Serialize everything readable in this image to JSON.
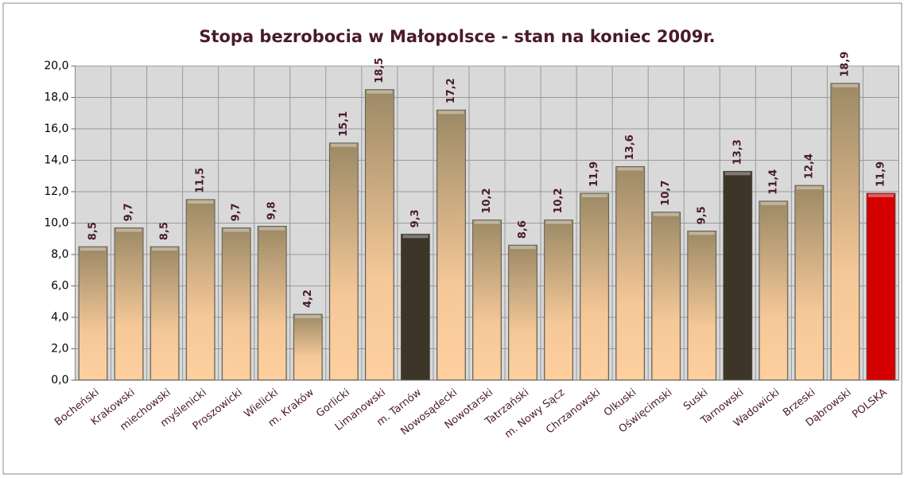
{
  "chart_data": {
    "type": "bar",
    "title": "Stopa bezrobocia w Małopolsce - stan na koniec 2009r.",
    "categories": [
      "Bocheński",
      "Krakowski",
      "miechowski",
      "myślenicki",
      "Proszowicki",
      "Wielicki",
      "m. Kraków",
      "Gorlicki",
      "Limanowski",
      "m. Tarnów",
      "Nowosądecki",
      "Nowotarski",
      "Tatrzański",
      "m. Nowy Sącz",
      "Chrzanowski",
      "Olkuski",
      "Oświęcimski",
      "Suski",
      "Tarnowski",
      "Wadowicki",
      "Brzeski",
      "Dąbrowski",
      "POLSKA"
    ],
    "values": [
      8.5,
      9.7,
      8.5,
      11.5,
      9.7,
      9.8,
      4.2,
      15.1,
      18.5,
      9.3,
      17.2,
      10.2,
      8.6,
      10.2,
      11.9,
      13.6,
      10.7,
      9.5,
      13.3,
      11.4,
      12.4,
      18.9,
      11.9
    ],
    "value_labels": [
      "8,5",
      "9,7",
      "8,5",
      "11,5",
      "9,7",
      "9,8",
      "4,2",
      "15,1",
      "18,5",
      "9,3",
      "17,2",
      "10,2",
      "8,6",
      "10,2",
      "11,9",
      "13,6",
      "10,7",
      "9,5",
      "13,3",
      "11,4",
      "12,4",
      "18,9",
      "11,9"
    ],
    "color": "#9c8a66",
    "colors": [
      "#9c8a66",
      "#9c8a66",
      "#9c8a66",
      "#9c8a66",
      "#9c8a66",
      "#9c8a66",
      "#9c8a66",
      "#9c8a66",
      "#9c8a66",
      "#3d3628",
      "#9c8a66",
      "#9c8a66",
      "#9c8a66",
      "#9c8a66",
      "#9c8a66",
      "#9c8a66",
      "#9c8a66",
      "#9c8a66",
      "#3d3628",
      "#9c8a66",
      "#9c8a66",
      "#9c8a66",
      "#d40000"
    ],
    "ylim": [
      0,
      20
    ],
    "yticks": [
      {
        "value": 0,
        "label": "0,0"
      },
      {
        "value": 2,
        "label": "2,0"
      },
      {
        "value": 4,
        "label": "4,0"
      },
      {
        "value": 6,
        "label": "6,0"
      },
      {
        "value": 8,
        "label": "8,0"
      },
      {
        "value": 10,
        "label": "10,0"
      },
      {
        "value": 12,
        "label": "12,0"
      },
      {
        "value": 14,
        "label": "14,0"
      },
      {
        "value": 16,
        "label": "16,0"
      },
      {
        "value": 18,
        "label": "18,0"
      },
      {
        "value": 20,
        "label": "20,0"
      }
    ],
    "grid": true
  }
}
